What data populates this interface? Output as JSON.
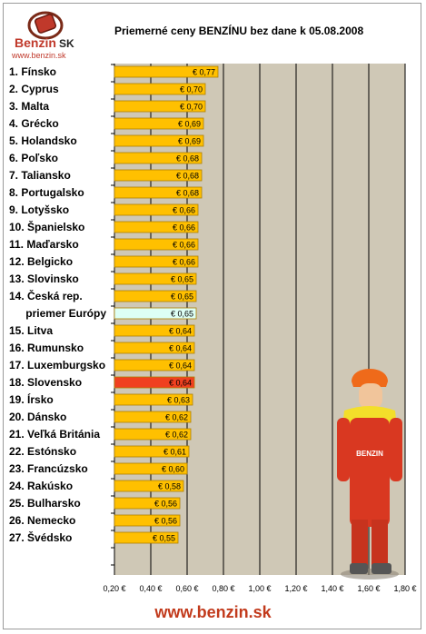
{
  "logo": {
    "brand": "Benzin",
    "brand_suffix": "SK",
    "url": "www.benzin.sk"
  },
  "footer_url": "www.benzin.sk",
  "colors": {
    "bar": "#ffc000",
    "bar_border": "#b08000",
    "highlight_bar": "#f04020",
    "average_bar": "#ddfff5",
    "plot_bg": "#cfc8b6",
    "highlight_label": "#e23b20",
    "average_label": "#7fb6d8",
    "footer": "#c23a1c"
  },
  "chart_data": {
    "type": "bar",
    "orientation": "horizontal",
    "title": "Priemerné ceny BENZÍNU bez dane k 05.08.2008",
    "xlabel": "",
    "ylabel": "",
    "xlim": [
      0.2,
      1.8
    ],
    "x_ticks": [
      "0,20 €",
      "0,40 €",
      "0,60 €",
      "0,80 €",
      "1,00 €",
      "1,20 €",
      "1,40 €",
      "1,60 €",
      "1,80 €"
    ],
    "x_tick_values": [
      0.2,
      0.4,
      0.6,
      0.8,
      1.0,
      1.2,
      1.4,
      1.6,
      1.8
    ],
    "grid": true,
    "categories": [
      "1. Fínsko",
      "2. Cyprus",
      "3. Malta",
      "4. Grécko",
      "5. Holandsko",
      "6. Poľsko",
      "7. Taliansko",
      "8. Portugalsko",
      "9. Lotyšsko",
      "10. Španielsko",
      "11. Maďarsko",
      "12. Belgicko",
      "13. Slovinsko",
      "14. Česká rep.",
      "priemer Európy",
      "15. Litva",
      "16. Rumunsko",
      "17. Luxemburgsko",
      "18. Slovensko",
      "19. Írsko",
      "20. Dánsko",
      "21. Veľká Británia",
      "22. Estónsko",
      "23. Francúzsko",
      "24. Rakúsko",
      "25. Bulharsko",
      "26. Nemecko",
      "27. Švédsko"
    ],
    "values": [
      0.77,
      0.7,
      0.7,
      0.69,
      0.69,
      0.68,
      0.68,
      0.68,
      0.66,
      0.66,
      0.66,
      0.66,
      0.65,
      0.65,
      0.65,
      0.64,
      0.64,
      0.64,
      0.64,
      0.63,
      0.62,
      0.62,
      0.61,
      0.6,
      0.58,
      0.56,
      0.56,
      0.55
    ],
    "value_labels": [
      "€ 0,77",
      "€ 0,70",
      "€ 0,70",
      "€ 0,69",
      "€ 0,69",
      "€ 0,68",
      "€ 0,68",
      "€ 0,68",
      "€ 0,66",
      "€ 0,66",
      "€ 0,66",
      "€ 0,66",
      "€ 0,65",
      "€ 0,65",
      "€ 0,65",
      "€ 0,64",
      "€ 0,64",
      "€ 0,64",
      "€ 0,64",
      "€ 0,63",
      "€ 0,62",
      "€ 0,62",
      "€ 0,61",
      "€ 0,60",
      "€ 0,58",
      "€ 0,56",
      "€ 0,56",
      "€ 0,55"
    ],
    "highlight_index": 18,
    "average_index": 14
  }
}
